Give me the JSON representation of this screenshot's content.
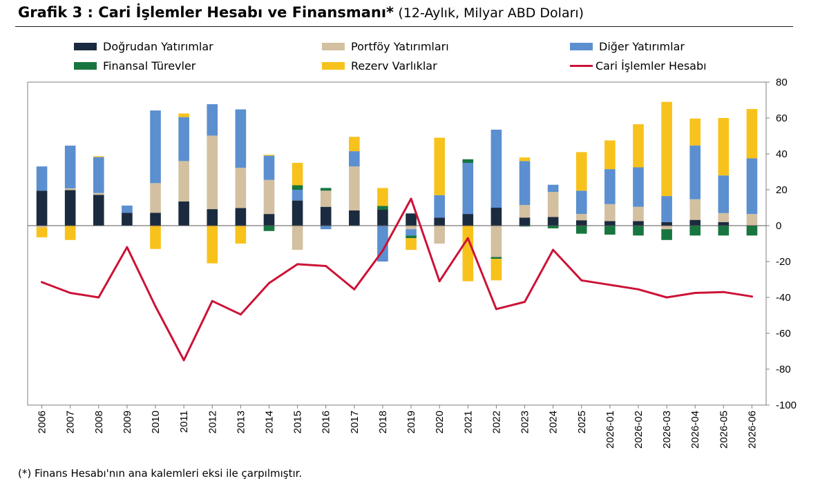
{
  "header": {
    "title_bold": "Grafik 3 : Cari İşlemler Hesabı ve Finansmanı*",
    "title_sub": "(12-Aylık, Milyar ABD Doları)"
  },
  "footnote": "(*) Finans Hesabı'nın ana kalemleri eksi ile çarpılmıştır.",
  "chart_data": {
    "type": "bar",
    "stacked": true,
    "title": "Grafik 3 : Cari İşlemler Hesabı ve Finansmanı*",
    "subtitle": "(12-Aylık, Milyar ABD Doları)",
    "categories": [
      "2006",
      "2007",
      "2008",
      "2009",
      "2010",
      "2011",
      "2012",
      "2013",
      "2014",
      "2015",
      "2016",
      "2017",
      "2018",
      "2019",
      "2020",
      "2021",
      "2022",
      "2023",
      "2024",
      "2025",
      "2026-01",
      "2026-02",
      "2026-03",
      "2026-04",
      "2026-05",
      "2026-06"
    ],
    "ylim": [
      -100,
      80
    ],
    "yticks": [
      80,
      60,
      40,
      20,
      0,
      -20,
      -40,
      -60,
      -80,
      -100
    ],
    "y_axis_side": "right",
    "legend_position": "top",
    "series": [
      {
        "name": "Doğrudan Yatırımlar",
        "color": "#1b2b3f",
        "values": [
          19.5,
          19.8,
          17.2,
          7.2,
          7.2,
          13.5,
          9.2,
          9.8,
          6.5,
          14.0,
          10.5,
          8.5,
          9.0,
          6.8,
          4.5,
          6.5,
          10.0,
          4.5,
          4.8,
          3.0,
          2.5,
          2.5,
          2.0,
          3.2,
          2.0,
          0.0
        ]
      },
      {
        "name": "Portföy Yatırımları",
        "color": "#d3c0a0",
        "values": [
          -1.0,
          1.0,
          1.0,
          0.0,
          16.5,
          22.5,
          41.0,
          22.5,
          19.0,
          -13.5,
          9.0,
          24.5,
          0.0,
          -2.0,
          -10.0,
          0.0,
          -17.5,
          7.0,
          14.0,
          3.5,
          9.5,
          8.0,
          -2.0,
          11.5,
          5.0,
          6.5
        ]
      },
      {
        "name": "Diğer Yatırımlar",
        "color": "#5b8fd0",
        "values": [
          13.5,
          23.8,
          20.0,
          4.0,
          40.5,
          24.5,
          17.5,
          32.5,
          13.5,
          6.0,
          -2.0,
          8.5,
          -20.0,
          -3.5,
          12.5,
          28.5,
          43.5,
          24.5,
          4.0,
          13.0,
          19.5,
          22.0,
          14.5,
          30.0,
          21.0,
          31.0
        ]
      },
      {
        "name": "Finansal Türevler",
        "color": "#17763f",
        "values": [
          0.0,
          0.0,
          0.0,
          0.0,
          0.0,
          0.0,
          0.0,
          0.0,
          -3.0,
          2.5,
          1.5,
          0.0,
          2.0,
          -1.5,
          0.0,
          2.0,
          -1.0,
          -0.5,
          -1.5,
          -4.5,
          -5.0,
          -5.5,
          -6.0,
          -5.5,
          -5.5,
          -5.5
        ]
      },
      {
        "name": "Rezerv Varlıklar",
        "color": "#f8c21c",
        "values": [
          -5.5,
          -8.0,
          0.5,
          0.0,
          -13.0,
          2.0,
          -21.0,
          -10.0,
          0.5,
          12.5,
          0.0,
          8.0,
          10.0,
          -6.5,
          32.0,
          -31.0,
          -12.0,
          2.0,
          0.0,
          21.5,
          16.0,
          24.0,
          52.5,
          15.0,
          32.0,
          27.5
        ]
      }
    ],
    "line_series": {
      "name": "Cari İşlemler Hesabı",
      "color": "#cc1236",
      "values": [
        -31.5,
        -37.5,
        -40.0,
        -12.0,
        -45.0,
        -75.0,
        -42.0,
        -49.5,
        -32.0,
        -21.5,
        -22.5,
        -35.5,
        -14.0,
        15.0,
        -31.0,
        -7.0,
        -46.5,
        -42.5,
        -13.5,
        -30.5,
        -33.0,
        -35.5,
        -40.0,
        -37.5,
        -37.0,
        -39.5
      ]
    }
  }
}
